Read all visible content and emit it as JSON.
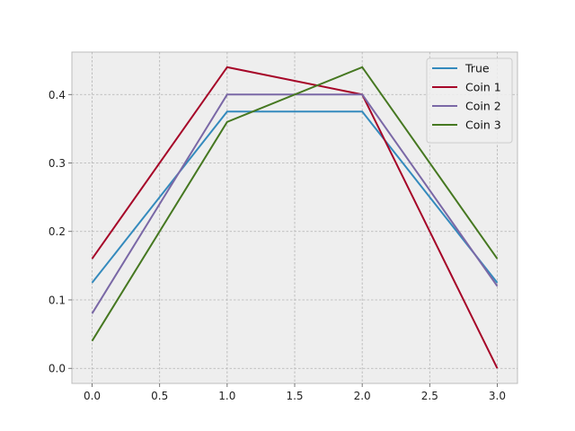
{
  "chart_data": {
    "type": "line",
    "title": "",
    "xlabel": "",
    "ylabel": "",
    "x": [
      0,
      1,
      2,
      3
    ],
    "xlim": [
      -0.15,
      3.15
    ],
    "ylim": [
      -0.022,
      0.462
    ],
    "xticks": [
      0.0,
      0.5,
      1.0,
      1.5,
      2.0,
      2.5,
      3.0
    ],
    "xtick_labels": [
      "0.0",
      "0.5",
      "1.0",
      "1.5",
      "2.0",
      "2.5",
      "3.0"
    ],
    "yticks": [
      0.0,
      0.1,
      0.2,
      0.3,
      0.4
    ],
    "ytick_labels": [
      "0.0",
      "0.1",
      "0.2",
      "0.3",
      "0.4"
    ],
    "grid": true,
    "legend_position": "top-right",
    "series": [
      {
        "name": "True",
        "color": "#348abd",
        "values": [
          0.125,
          0.375,
          0.375,
          0.125
        ]
      },
      {
        "name": "Coin 1",
        "color": "#a60628",
        "values": [
          0.16,
          0.44,
          0.4,
          0.0
        ]
      },
      {
        "name": "Coin 2",
        "color": "#7a68a6",
        "values": [
          0.08,
          0.4,
          0.4,
          0.12
        ]
      },
      {
        "name": "Coin 3",
        "color": "#467821",
        "values": [
          0.04,
          0.36,
          0.44,
          0.16
        ]
      }
    ]
  }
}
